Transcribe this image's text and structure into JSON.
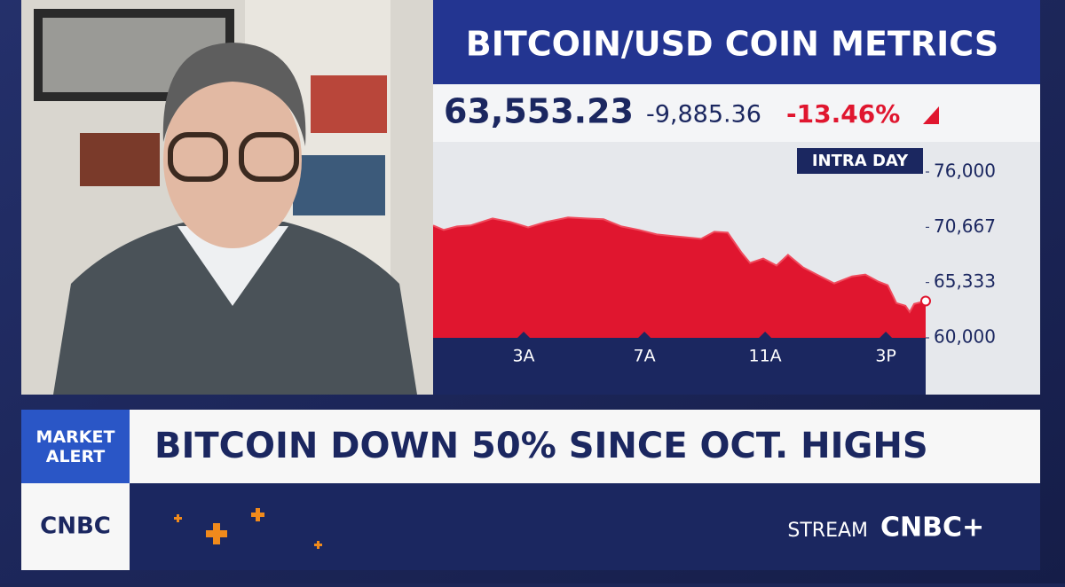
{
  "header": {
    "title": "BITCOIN/USD COIN METRICS"
  },
  "quote": {
    "price": "63,553.23",
    "change": "-9,885.36",
    "percent": "-13.46%"
  },
  "chart_data": {
    "type": "area",
    "label": "INTRA DAY",
    "color": "#e0162f",
    "x": [
      0,
      0.35,
      0.79,
      1.24,
      1.97,
      2.56,
      3.15,
      3.74,
      4.47,
      5.06,
      5.65,
      6.24,
      6.82,
      7.41,
      8.29,
      8.88,
      9.32,
      9.76,
      10.21,
      10.5,
      10.94,
      11.38,
      11.76,
      12.26,
      12.71,
      13.29,
      13.88,
      14.32,
      14.76,
      15.06,
      15.35,
      15.65,
      15.79,
      15.94,
      16.32
    ],
    "values": [
      70840,
      70410,
      70750,
      70840,
      71520,
      71180,
      70660,
      71180,
      71610,
      71520,
      71440,
      70750,
      70410,
      69980,
      69720,
      69550,
      70230,
      70150,
      68260,
      67220,
      67650,
      66970,
      68000,
      66790,
      66110,
      65250,
      65930,
      66110,
      65420,
      65070,
      63350,
      63100,
      62490,
      63270,
      63550
    ],
    "xlim": [
      0,
      16.32
    ],
    "xticks": [
      {
        "value": 3,
        "label": "3A"
      },
      {
        "value": 7,
        "label": "7A"
      },
      {
        "value": 11,
        "label": "11A"
      },
      {
        "value": 15,
        "label": "3P"
      }
    ],
    "ylim": [
      60000,
      76000
    ],
    "yticks": [
      {
        "value": 60000,
        "label": "60,000"
      },
      {
        "value": 65333,
        "label": "65,333"
      },
      {
        "value": 70667,
        "label": "70,667"
      },
      {
        "value": 76000,
        "label": "76,000"
      }
    ]
  },
  "banner": {
    "tag": "MARKET ALERT",
    "headline": "BITCOIN DOWN 50% SINCE OCT. HIGHS"
  },
  "footer": {
    "logo": "CNBC",
    "stream": "STREAM",
    "brand": "CNBC+"
  }
}
